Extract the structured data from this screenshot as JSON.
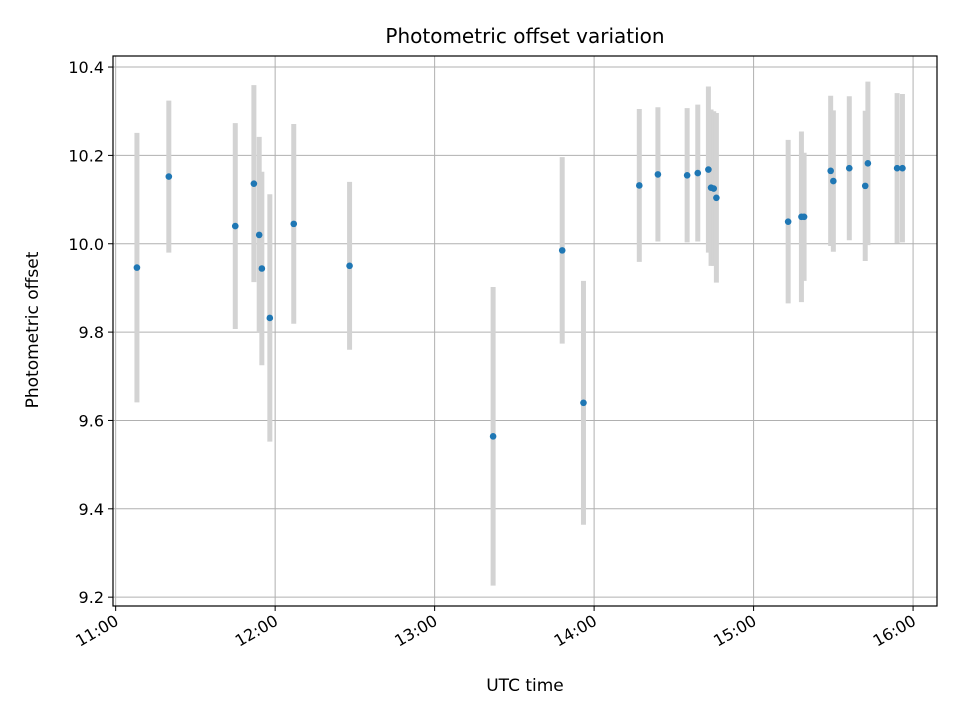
{
  "chart_data": {
    "type": "scatter",
    "title": "Photometric offset variation",
    "xlabel": "UTC time",
    "ylabel": "Photometric offset",
    "xlim": [
      "10:59",
      "16:09"
    ],
    "ylim": [
      9.18,
      10.425
    ],
    "grid": true,
    "x_ticks": [
      "11:00",
      "12:00",
      "13:00",
      "14:00",
      "15:00",
      "16:00"
    ],
    "y_ticks": [
      9.2,
      9.4,
      9.6,
      9.8,
      10.0,
      10.2,
      10.4
    ],
    "y_tick_labels": [
      "9.2",
      "9.4",
      "9.6",
      "9.8",
      "10.0",
      "10.2",
      "10.4"
    ],
    "colors": {
      "point": "#1f77b4",
      "errorbar": "#d3d3d3",
      "grid": "#b0b0b0"
    },
    "points": [
      {
        "time": "11:08",
        "y": 9.946,
        "yerr": 0.305
      },
      {
        "time": "11:20",
        "y": 10.152,
        "yerr": 0.172
      },
      {
        "time": "11:45",
        "y": 10.04,
        "yerr": 0.233
      },
      {
        "time": "11:52",
        "y": 10.136,
        "yerr": 0.223
      },
      {
        "time": "11:54",
        "y": 10.02,
        "yerr": 0.222
      },
      {
        "time": "11:55",
        "y": 9.944,
        "yerr": 0.219
      },
      {
        "time": "11:58",
        "y": 9.832,
        "yerr": 0.28
      },
      {
        "time": "12:07",
        "y": 10.045,
        "yerr": 0.226
      },
      {
        "time": "12:28",
        "y": 9.95,
        "yerr": 0.19
      },
      {
        "time": "13:22",
        "y": 9.564,
        "yerr": 0.338
      },
      {
        "time": "13:48",
        "y": 9.985,
        "yerr": 0.211
      },
      {
        "time": "13:56",
        "y": 9.64,
        "yerr": 0.276
      },
      {
        "time": "14:17",
        "y": 10.132,
        "yerr": 0.173
      },
      {
        "time": "14:24",
        "y": 10.157,
        "yerr": 0.152
      },
      {
        "time": "14:35",
        "y": 10.155,
        "yerr": 0.152
      },
      {
        "time": "14:39",
        "y": 10.16,
        "yerr": 0.155
      },
      {
        "time": "14:43",
        "y": 10.168,
        "yerr": 0.188
      },
      {
        "time": "14:44",
        "y": 10.127,
        "yerr": 0.177
      },
      {
        "time": "14:45",
        "y": 10.125,
        "yerr": 0.175
      },
      {
        "time": "14:46",
        "y": 10.104,
        "yerr": 0.192
      },
      {
        "time": "15:13",
        "y": 10.05,
        "yerr": 0.185
      },
      {
        "time": "15:18",
        "y": 10.061,
        "yerr": 0.193
      },
      {
        "time": "15:19",
        "y": 10.061,
        "yerr": 0.145
      },
      {
        "time": "15:29",
        "y": 10.165,
        "yerr": 0.17
      },
      {
        "time": "15:30",
        "y": 10.142,
        "yerr": 0.16
      },
      {
        "time": "15:36",
        "y": 10.171,
        "yerr": 0.163
      },
      {
        "time": "15:42",
        "y": 10.131,
        "yerr": 0.17
      },
      {
        "time": "15:43",
        "y": 10.182,
        "yerr": 0.185
      },
      {
        "time": "15:54",
        "y": 10.171,
        "yerr": 0.17
      },
      {
        "time": "15:56",
        "y": 10.171,
        "yerr": 0.168
      }
    ]
  }
}
